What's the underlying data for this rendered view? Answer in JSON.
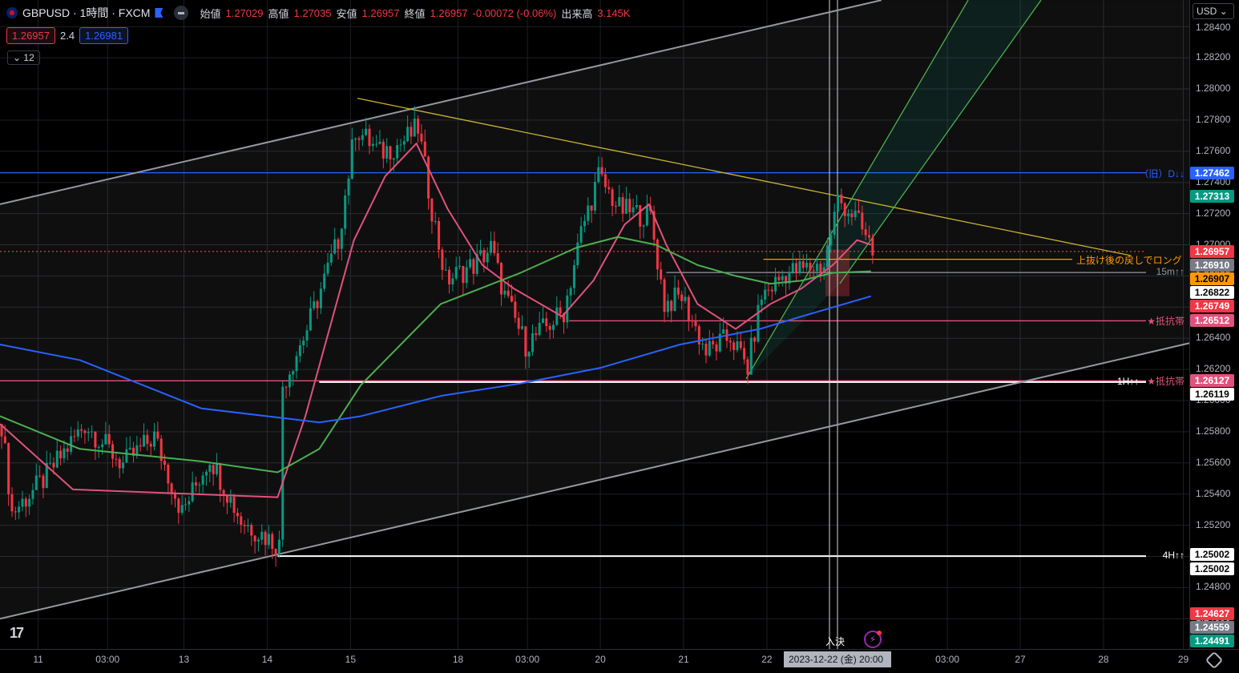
{
  "header": {
    "symbol": "GBPUSD · 1時間 · FXCM",
    "open_label": "始値",
    "open": "1.27029",
    "high_label": "高値",
    "high": "1.27035",
    "low_label": "安値",
    "low": "1.26957",
    "close_label": "終値",
    "close": "1.26957",
    "change": "-0.00072 (-0.06%)",
    "volume_label": "出来高",
    "volume": "3.145K"
  },
  "quote": {
    "bid": "1.26957",
    "spread": "2.4",
    "ask": "1.26981"
  },
  "indicators_toggle": "12",
  "currency": "USD",
  "colors": {
    "up": "#089981",
    "down": "#f23645",
    "ma_fast": "#e0527c",
    "ma_mid": "#4caf50",
    "ma_slow": "#2962ff",
    "grid": "#1c1f26"
  },
  "chart_data": {
    "type": "candlestick",
    "x_unit": "hourly bar index",
    "ylim": [
      1.244,
      1.286
    ],
    "y_ticks": [
      "1.28400",
      "1.28200",
      "1.28000",
      "1.27800",
      "1.27600",
      "1.27400",
      "1.27200",
      "1.27000",
      "1.26800",
      "1.26600",
      "1.26400",
      "1.26200",
      "1.26000",
      "1.25800",
      "1.25600",
      "1.25400",
      "1.25200",
      "1.25000",
      "1.24800",
      "1.24600"
    ],
    "y_tick_values": [
      1.284,
      1.282,
      1.28,
      1.278,
      1.276,
      1.274,
      1.272,
      1.27,
      1.268,
      1.266,
      1.264,
      1.262,
      1.26,
      1.258,
      1.256,
      1.254,
      1.252,
      1.25,
      1.248,
      1.246
    ],
    "x_ticks": [
      {
        "bar": 11,
        "label": "11"
      },
      {
        "bar": 31,
        "label": "03:00"
      },
      {
        "bar": 53,
        "label": "13"
      },
      {
        "bar": 77,
        "label": "14"
      },
      {
        "bar": 101,
        "label": "15"
      },
      {
        "bar": 132,
        "label": "18"
      },
      {
        "bar": 152,
        "label": "03:00"
      },
      {
        "bar": 173,
        "label": "20"
      },
      {
        "bar": 197,
        "label": "21"
      },
      {
        "bar": 221,
        "label": "22"
      },
      {
        "bar": 273,
        "label": "03:00"
      },
      {
        "bar": 294,
        "label": "27"
      },
      {
        "bar": 318,
        "label": "28"
      },
      {
        "bar": 341,
        "label": "29"
      }
    ],
    "price_path": [
      [
        0,
        1.2585
      ],
      [
        3,
        1.2528
      ],
      [
        12,
        1.2549
      ],
      [
        24,
        1.2585
      ],
      [
        35,
        1.2559
      ],
      [
        44,
        1.2577
      ],
      [
        52,
        1.2528
      ],
      [
        60,
        1.2564
      ],
      [
        69,
        1.2523
      ],
      [
        80,
        1.2507
      ],
      [
        81,
        1.261
      ],
      [
        88,
        1.2646
      ],
      [
        97,
        1.2703
      ],
      [
        102,
        1.2775
      ],
      [
        109,
        1.2759
      ],
      [
        115,
        1.2765
      ],
      [
        120,
        1.2775
      ],
      [
        124,
        1.2723
      ],
      [
        128,
        1.2677
      ],
      [
        136,
        1.2687
      ],
      [
        141,
        1.2698
      ],
      [
        145,
        1.2667
      ],
      [
        151,
        1.2636
      ],
      [
        162,
        1.2657
      ],
      [
        167,
        1.2708
      ],
      [
        172,
        1.2744
      ],
      [
        178,
        1.2723
      ],
      [
        187,
        1.2718
      ],
      [
        191,
        1.2662
      ],
      [
        196,
        1.2667
      ],
      [
        203,
        1.2631
      ],
      [
        210,
        1.2641
      ],
      [
        215,
        1.2621
      ],
      [
        219,
        1.2667
      ],
      [
        226,
        1.2682
      ],
      [
        237,
        1.2687
      ],
      [
        241,
        1.2729
      ],
      [
        246,
        1.2718
      ],
      [
        251,
        1.2696
      ]
    ],
    "ma_fast": [
      [
        0,
        1.2585
      ],
      [
        21,
        1.2543
      ],
      [
        80,
        1.2538
      ],
      [
        88,
        1.259
      ],
      [
        102,
        1.2703
      ],
      [
        111,
        1.2744
      ],
      [
        120,
        1.2765
      ],
      [
        129,
        1.2723
      ],
      [
        139,
        1.2687
      ],
      [
        148,
        1.2672
      ],
      [
        162,
        1.2654
      ],
      [
        171,
        1.2677
      ],
      [
        180,
        1.2713
      ],
      [
        187,
        1.2726
      ],
      [
        192,
        1.27
      ],
      [
        201,
        1.2662
      ],
      [
        212,
        1.2646
      ],
      [
        222,
        1.2662
      ],
      [
        231,
        1.2672
      ],
      [
        240,
        1.2687
      ],
      [
        247,
        1.2703
      ],
      [
        251,
        1.27
      ]
    ],
    "ma_mid": [
      [
        0,
        1.259
      ],
      [
        23,
        1.2569
      ],
      [
        58,
        1.2561
      ],
      [
        80,
        1.2554
      ],
      [
        92,
        1.2569
      ],
      [
        104,
        1.261
      ],
      [
        127,
        1.2662
      ],
      [
        150,
        1.2682
      ],
      [
        166,
        1.2698
      ],
      [
        178,
        1.2705
      ],
      [
        189,
        1.27
      ],
      [
        201,
        1.2687
      ],
      [
        212,
        1.268
      ],
      [
        222,
        1.2675
      ],
      [
        231,
        1.2677
      ],
      [
        240,
        1.2682
      ],
      [
        251,
        1.2683
      ]
    ],
    "ma_slow": [
      [
        0,
        1.2636
      ],
      [
        23,
        1.2626
      ],
      [
        58,
        1.2595
      ],
      [
        92,
        1.2586
      ],
      [
        104,
        1.259
      ],
      [
        127,
        1.2603
      ],
      [
        150,
        1.2611
      ],
      [
        173,
        1.2621
      ],
      [
        196,
        1.2636
      ],
      [
        219,
        1.2646
      ],
      [
        231,
        1.2654
      ],
      [
        251,
        1.2667
      ]
    ],
    "trendlines": [
      {
        "name": "upper-channel",
        "color": "#9598a1",
        "from": [
          0,
          1.2726
        ],
        "to": [
          254,
          1.2857
        ]
      },
      {
        "name": "lower-channel",
        "color": "#9598a1",
        "from": [
          0,
          1.246
        ],
        "to": [
          343,
          1.2637
        ]
      },
      {
        "name": "descending-resistance",
        "color": "#c9b336",
        "from": [
          103,
          1.2794
        ],
        "to": [
          326,
          1.2693
        ]
      },
      {
        "name": "rising-channel-left",
        "color": "#4caf50",
        "from": [
          215,
          1.2614
        ],
        "to": [
          279,
          1.2857
        ]
      },
      {
        "name": "rising-channel-right",
        "color": "#4caf50",
        "from": [
          242,
          1.2675
        ],
        "to": [
          300,
          1.2857
        ]
      }
    ],
    "horizontal_lines": [
      {
        "price": 1.27462,
        "from": 0,
        "color": "#2962ff",
        "label": "（旧）D↓↓"
      },
      {
        "price": 1.26957,
        "from": 0,
        "color": "#f23645",
        "dotted": true
      },
      {
        "price": 1.26907,
        "from": 220,
        "to": 309,
        "color": "#ff9800",
        "label": "上抜け後の戻しでロング"
      },
      {
        "price": 1.26822,
        "from": 192,
        "color": "#9598a1",
        "label": "15m↑↑"
      },
      {
        "price": 1.26512,
        "from": 164,
        "color": "#e0527c",
        "label": "★抵抗帯"
      },
      {
        "price": 1.26127,
        "from": 0,
        "color": "#e0527c",
        "label": "★抵抗帯"
      },
      {
        "price": 1.26119,
        "from": 92,
        "color": "#ffffff",
        "label": "1H↑↑"
      },
      {
        "price": 1.25002,
        "from": 80,
        "color": "#ffffff",
        "label": "4H↑↑"
      }
    ],
    "price_tags": [
      {
        "value": "1.27462",
        "bg": "#2962ff",
        "fg": "#ffffff"
      },
      {
        "value": "1.27313",
        "bg": "#089981",
        "fg": "#ffffff"
      },
      {
        "value": "1.26957",
        "bg": "#f23645",
        "fg": "#ffffff"
      },
      {
        "value": "1.26910",
        "bg": "#787b86",
        "fg": "#ffffff"
      },
      {
        "value": "1.26907",
        "bg": "#ff9800",
        "fg": "#000000"
      },
      {
        "value": "1.26822",
        "bg": "#ffffff",
        "fg": "#000000"
      },
      {
        "value": "1.26749",
        "bg": "#f23645",
        "fg": "#ffffff"
      },
      {
        "value": "1.26512",
        "bg": "#e0527c",
        "fg": "#ffffff"
      },
      {
        "value": "1.26127",
        "bg": "#e0527c",
        "fg": "#ffffff"
      },
      {
        "value": "1.26119",
        "bg": "#ffffff",
        "fg": "#000000"
      },
      {
        "value": "1.25002",
        "bg": "#ffffff",
        "fg": "#000000"
      },
      {
        "value": "1.25002",
        "bg": "#ffffff",
        "fg": "#000000"
      },
      {
        "value": "1.24627",
        "bg": "#f23645",
        "fg": "#ffffff"
      },
      {
        "value": "1.24559",
        "bg": "#787b86",
        "fg": "#ffffff"
      },
      {
        "value": "1.24491",
        "bg": "#089981",
        "fg": "#ffffff"
      }
    ]
  },
  "crosshair_date": "2023-12-22 (金)  20:00",
  "event_marker": "入決"
}
